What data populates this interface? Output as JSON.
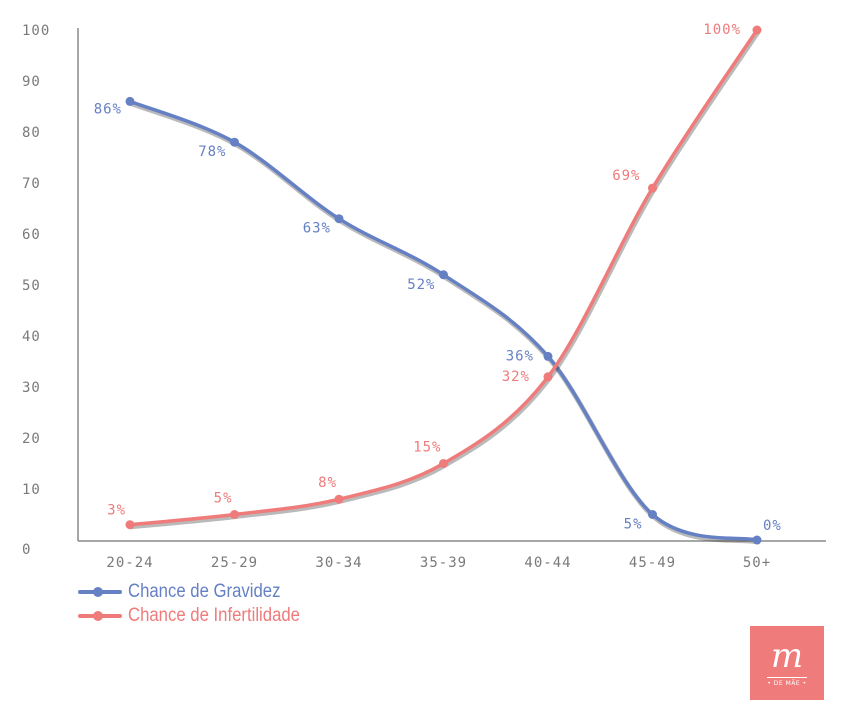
{
  "chart_data": {
    "type": "line",
    "categories": [
      "20-24",
      "25-29",
      "30-34",
      "35-39",
      "40-44",
      "45-49",
      "50+"
    ],
    "yticks": [
      "0",
      "10",
      "20",
      "30",
      "40",
      "50",
      "60",
      "70",
      "80",
      "90",
      "100"
    ],
    "ylim": [
      0,
      100
    ],
    "grid": false,
    "legend_position": "bottom-left",
    "series": [
      {
        "name": "Chance de Gravidez",
        "color": "#6680c4",
        "values": [
          86,
          78,
          63,
          52,
          36,
          5,
          0
        ],
        "labels": [
          "86%",
          "78%",
          "63%",
          "52%",
          "36%",
          "5%",
          "0%"
        ]
      },
      {
        "name": "Chance de Infertilidade",
        "color": "#ef7b7b",
        "values": [
          3,
          5,
          8,
          15,
          32,
          69,
          100
        ],
        "labels": [
          "3%",
          "5%",
          "8%",
          "15%",
          "32%",
          "69%",
          "100%"
        ]
      }
    ]
  },
  "logo": {
    "mark": "m",
    "subtitle": "• DE MÃE •"
  }
}
